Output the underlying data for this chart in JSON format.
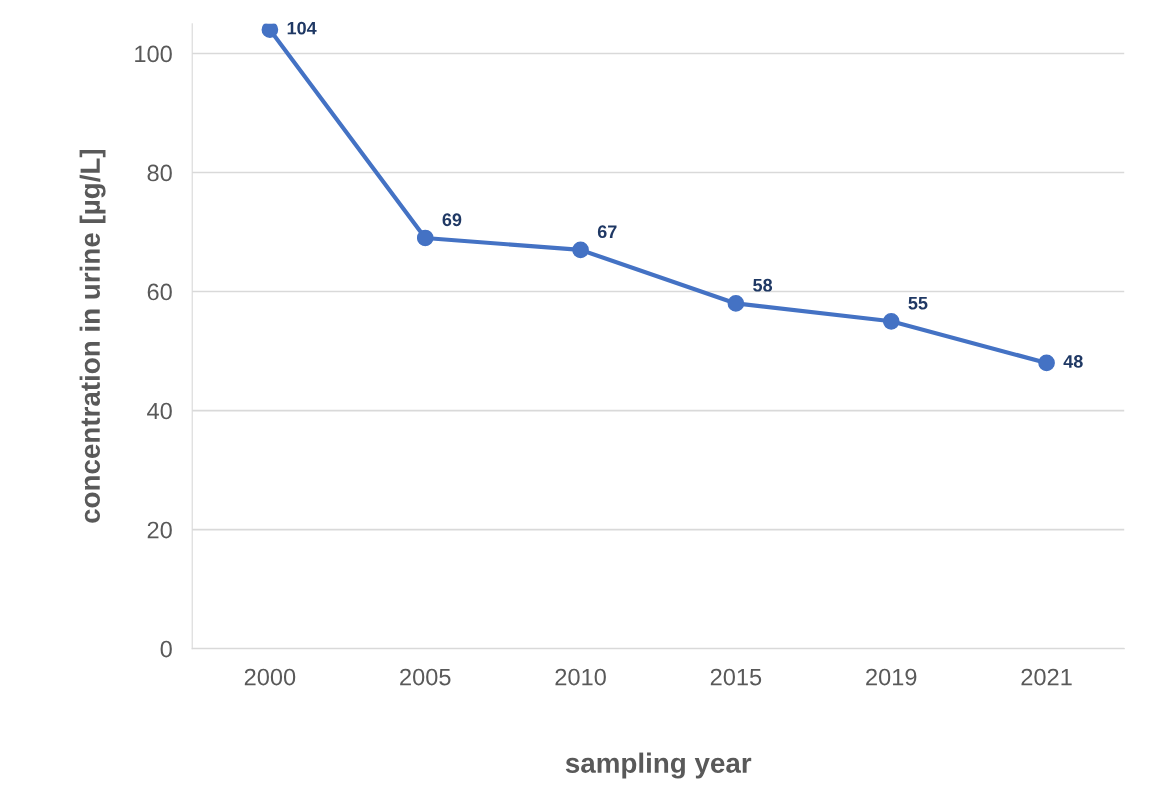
{
  "chart_data": {
    "type": "line",
    "xlabel": "sampling year",
    "ylabel": "concentration in urine [µg/L]",
    "categories": [
      "2000",
      "2005",
      "2010",
      "2015",
      "2019",
      "2021"
    ],
    "series": [
      {
        "color": "#4472c4",
        "values": [
          104,
          69,
          67,
          58,
          55,
          48
        ]
      }
    ],
    "data_labels": true,
    "ylim": [
      0,
      105
    ],
    "yticks": [
      0,
      20,
      40,
      60,
      80,
      100
    ],
    "grid": "y",
    "legend": false,
    "marker": "circle",
    "line_style": "solid"
  }
}
